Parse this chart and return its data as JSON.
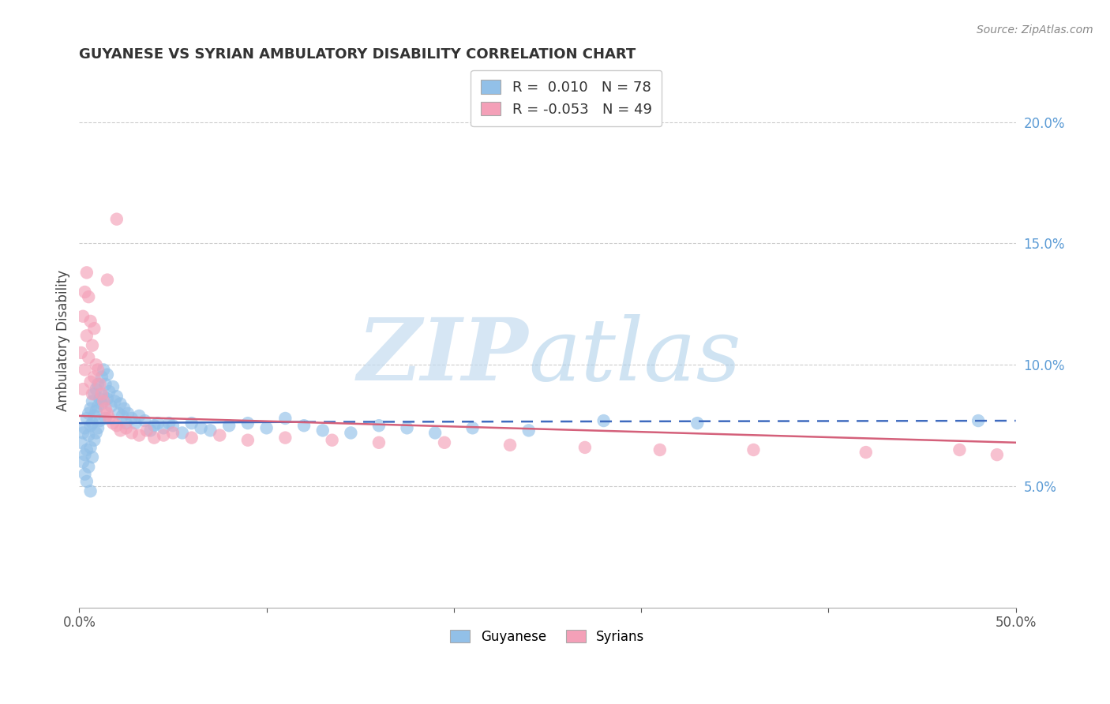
{
  "title": "GUYANESE VS SYRIAN AMBULATORY DISABILITY CORRELATION CHART",
  "source": "Source: ZipAtlas.com",
  "ylabel": "Ambulatory Disability",
  "xlim": [
    0.0,
    0.5
  ],
  "ylim": [
    0.0,
    0.22
  ],
  "xticks": [
    0.0,
    0.1,
    0.2,
    0.3,
    0.4,
    0.5
  ],
  "xticklabels": [
    "0.0%",
    "",
    "",
    "",
    "",
    "50.0%"
  ],
  "yticks_right": [
    0.05,
    0.1,
    0.15,
    0.2
  ],
  "yticklabels_right": [
    "5.0%",
    "10.0%",
    "15.0%",
    "20.0%"
  ],
  "blue_R": 0.01,
  "blue_N": 78,
  "pink_R": -0.053,
  "pink_N": 49,
  "blue_color": "#92C0E8",
  "pink_color": "#F4A0B8",
  "trend_blue": "#3F6BBF",
  "trend_pink": "#D4607A",
  "background": "#FFFFFF",
  "grid_color": "#C8C8C8",
  "legend_items": [
    "Guyanese",
    "Syrians"
  ],
  "blue_scatter_x": [
    0.001,
    0.002,
    0.002,
    0.003,
    0.003,
    0.003,
    0.004,
    0.004,
    0.004,
    0.005,
    0.005,
    0.005,
    0.006,
    0.006,
    0.006,
    0.006,
    0.007,
    0.007,
    0.007,
    0.008,
    0.008,
    0.008,
    0.009,
    0.009,
    0.009,
    0.01,
    0.01,
    0.01,
    0.011,
    0.011,
    0.012,
    0.012,
    0.013,
    0.013,
    0.014,
    0.014,
    0.015,
    0.015,
    0.016,
    0.017,
    0.018,
    0.019,
    0.02,
    0.021,
    0.022,
    0.023,
    0.024,
    0.025,
    0.026,
    0.028,
    0.03,
    0.032,
    0.035,
    0.038,
    0.04,
    0.042,
    0.045,
    0.048,
    0.05,
    0.055,
    0.06,
    0.065,
    0.07,
    0.08,
    0.09,
    0.1,
    0.11,
    0.12,
    0.13,
    0.145,
    0.16,
    0.175,
    0.19,
    0.21,
    0.24,
    0.28,
    0.33,
    0.48
  ],
  "blue_scatter_y": [
    0.068,
    0.072,
    0.06,
    0.074,
    0.063,
    0.055,
    0.078,
    0.065,
    0.052,
    0.08,
    0.071,
    0.058,
    0.082,
    0.075,
    0.066,
    0.048,
    0.085,
    0.076,
    0.062,
    0.088,
    0.079,
    0.069,
    0.09,
    0.081,
    0.072,
    0.092,
    0.083,
    0.074,
    0.086,
    0.077,
    0.095,
    0.084,
    0.098,
    0.087,
    0.092,
    0.078,
    0.096,
    0.086,
    0.089,
    0.083,
    0.091,
    0.085,
    0.087,
    0.08,
    0.084,
    0.079,
    0.082,
    0.076,
    0.08,
    0.078,
    0.076,
    0.079,
    0.077,
    0.073,
    0.075,
    0.076,
    0.074,
    0.076,
    0.075,
    0.072,
    0.076,
    0.074,
    0.073,
    0.075,
    0.076,
    0.074,
    0.078,
    0.075,
    0.073,
    0.072,
    0.075,
    0.074,
    0.072,
    0.074,
    0.073,
    0.077,
    0.076,
    0.077
  ],
  "pink_scatter_x": [
    0.001,
    0.002,
    0.002,
    0.003,
    0.003,
    0.004,
    0.004,
    0.005,
    0.005,
    0.006,
    0.006,
    0.007,
    0.007,
    0.008,
    0.008,
    0.009,
    0.01,
    0.011,
    0.012,
    0.013,
    0.014,
    0.015,
    0.016,
    0.018,
    0.02,
    0.022,
    0.025,
    0.028,
    0.032,
    0.036,
    0.04,
    0.045,
    0.05,
    0.06,
    0.075,
    0.09,
    0.11,
    0.135,
    0.16,
    0.195,
    0.23,
    0.27,
    0.31,
    0.36,
    0.42,
    0.47,
    0.49,
    0.02,
    0.015
  ],
  "pink_scatter_y": [
    0.105,
    0.12,
    0.09,
    0.13,
    0.098,
    0.138,
    0.112,
    0.128,
    0.103,
    0.118,
    0.093,
    0.108,
    0.088,
    0.115,
    0.095,
    0.1,
    0.098,
    0.092,
    0.088,
    0.085,
    0.082,
    0.08,
    0.078,
    0.076,
    0.075,
    0.073,
    0.074,
    0.072,
    0.071,
    0.073,
    0.07,
    0.071,
    0.072,
    0.07,
    0.071,
    0.069,
    0.07,
    0.069,
    0.068,
    0.068,
    0.067,
    0.066,
    0.065,
    0.065,
    0.064,
    0.065,
    0.063,
    0.16,
    0.135
  ],
  "blue_trend_x0": 0.0,
  "blue_trend_x_solid_end": 0.12,
  "blue_trend_x1": 0.5,
  "blue_trend_y_at_0": 0.076,
  "blue_trend_y_at_solid_end": 0.0765,
  "blue_trend_y_at_1": 0.077,
  "pink_trend_x0": 0.0,
  "pink_trend_x1": 0.5,
  "pink_trend_y_at_0": 0.079,
  "pink_trend_y_at_1": 0.068
}
